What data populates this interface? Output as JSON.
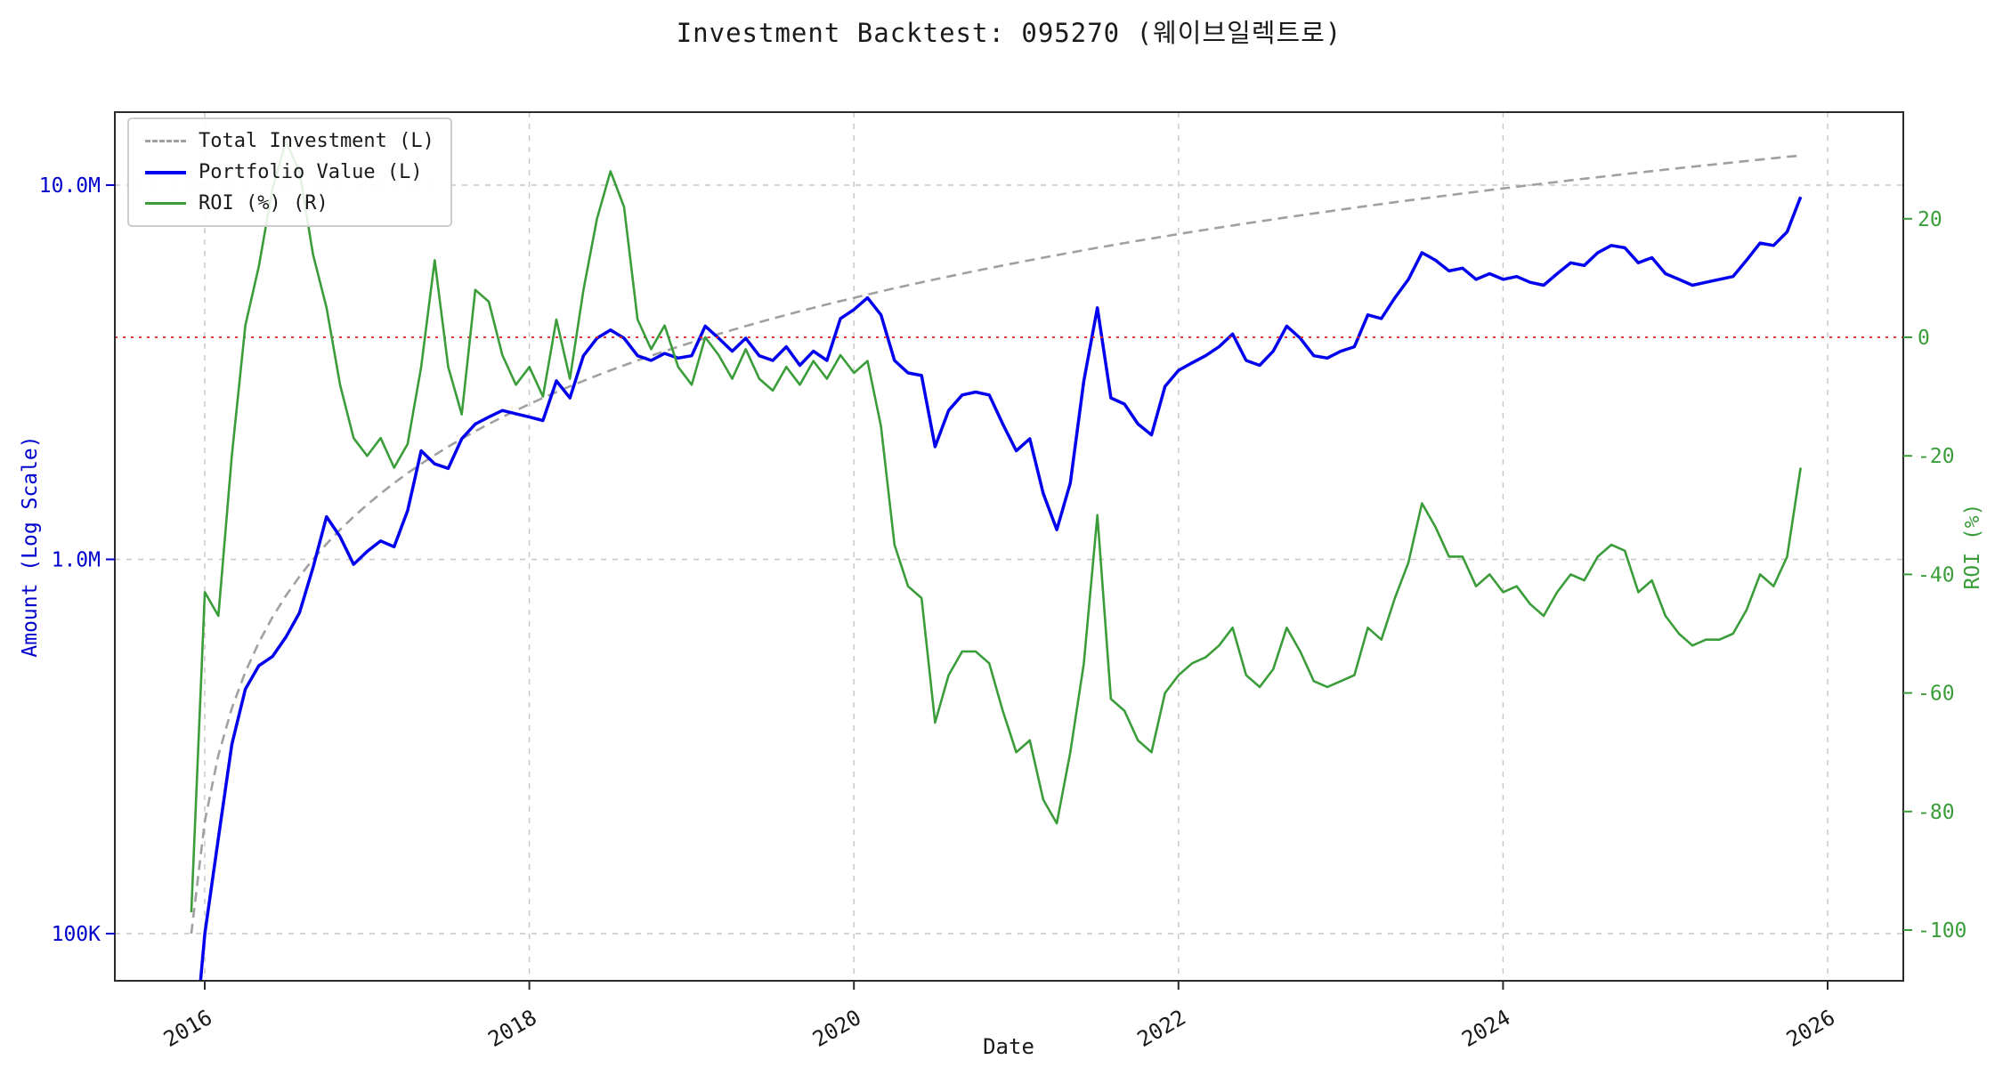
{
  "title": "Investment Backtest: 095270 (웨이브일렉트로)",
  "background_color": "#ffffff",
  "chart_data": {
    "type": "line",
    "title": "Investment Backtest: 095270 (웨이브일렉트로)",
    "grid": true,
    "legend_position": "upper left",
    "x_axis": {
      "label": "Date",
      "start_decimal_year": 2015.917,
      "step_years": 0.0833333,
      "points": 120,
      "ticks": [
        2016,
        2018,
        2020,
        2022,
        2024,
        2026
      ],
      "tick_color": "#1a1a1a"
    },
    "y_left": {
      "label": "Amount (Log Scale)",
      "scale": "log",
      "color": "#0000cc",
      "range_m": [
        0.075,
        15.6
      ],
      "ticks": [
        {
          "label": "10.0M",
          "value_m": 10
        },
        {
          "label": "1.0M",
          "value_m": 1
        },
        {
          "label": "100K",
          "value_m": 0.1
        }
      ]
    },
    "y_right": {
      "label": "ROI (%)",
      "scale": "linear",
      "color": "#3a9d3a",
      "range_pct": [
        -108,
        38
      ],
      "ticks": [
        {
          "label": "20",
          "value": 20
        },
        {
          "label": "0",
          "value": 0
        },
        {
          "label": "-20",
          "value": -20
        },
        {
          "label": "-40",
          "value": -40
        },
        {
          "label": "-60",
          "value": -60
        },
        {
          "label": "-80",
          "value": -80
        },
        {
          "label": "-100",
          "value": -100
        }
      ]
    },
    "reference_line": {
      "axis": "right",
      "value": 0,
      "color": "#e02020",
      "style": "dotted"
    },
    "series": [
      {
        "name": "Total Investment (L)",
        "axis": "left",
        "style": "dashed",
        "color": "#a0a0a0",
        "generator": {
          "type": "linear_monthly_contribution",
          "start_m": 0.1,
          "step_m": 0.1
        }
      },
      {
        "name": "Portfolio Value (L)",
        "axis": "left",
        "style": "solid",
        "color": "#0000ee",
        "values_m": [
          0.04,
          0.1,
          0.18,
          0.32,
          0.45,
          0.52,
          0.55,
          0.62,
          0.72,
          0.95,
          1.3,
          1.15,
          0.97,
          1.05,
          1.12,
          1.08,
          1.35,
          1.95,
          1.8,
          1.75,
          2.1,
          2.3,
          2.4,
          2.5,
          2.45,
          2.4,
          2.35,
          3.0,
          2.7,
          3.5,
          3.9,
          4.1,
          3.9,
          3.5,
          3.4,
          3.55,
          3.45,
          3.5,
          4.2,
          3.9,
          3.6,
          3.9,
          3.5,
          3.4,
          3.7,
          3.3,
          3.6,
          3.4,
          4.4,
          4.65,
          5.0,
          4.5,
          3.4,
          3.15,
          3.1,
          2.0,
          2.5,
          2.75,
          2.8,
          2.75,
          2.3,
          1.95,
          2.1,
          1.5,
          1.2,
          1.6,
          3.0,
          4.7,
          2.7,
          2.6,
          2.3,
          2.15,
          2.9,
          3.2,
          3.35,
          3.5,
          3.7,
          4.0,
          3.4,
          3.3,
          3.6,
          4.2,
          3.9,
          3.5,
          3.45,
          3.6,
          3.7,
          4.5,
          4.4,
          5.0,
          5.6,
          6.6,
          6.3,
          5.9,
          6.0,
          5.6,
          5.8,
          5.6,
          5.7,
          5.5,
          5.4,
          5.8,
          6.2,
          6.1,
          6.6,
          6.9,
          6.8,
          6.2,
          6.4,
          5.8,
          5.6,
          5.4,
          5.5,
          5.6,
          5.7,
          6.3,
          7.0,
          6.9,
          7.5,
          9.3
        ]
      },
      {
        "name": "ROI (%) (R)",
        "axis": "right",
        "style": "solid",
        "color": "#3a9d3a",
        "values_pct": [
          -97,
          -43,
          -47,
          -20,
          2,
          12,
          25,
          33,
          28,
          14,
          5,
          -8,
          -17,
          -20,
          -17,
          -22,
          -18,
          -5,
          13,
          -5,
          -13,
          8,
          6,
          -3,
          -8,
          -5,
          -10,
          3,
          -7,
          8,
          20,
          28,
          22,
          3,
          -2,
          2,
          -5,
          -8,
          0,
          -3,
          -7,
          -2,
          -7,
          -9,
          -5,
          -8,
          -4,
          -7,
          -3,
          -6,
          -4,
          -15,
          -35,
          -42,
          -44,
          -65,
          -57,
          -53,
          -53,
          -55,
          -63,
          -70,
          -68,
          -78,
          -82,
          -70,
          -55,
          -30,
          -61,
          -63,
          -68,
          -70,
          -60,
          -57,
          -55,
          -54,
          -52,
          -49,
          -57,
          -59,
          -56,
          -49,
          -53,
          -58,
          -59,
          -58,
          -57,
          -49,
          -51,
          -44,
          -38,
          -28,
          -32,
          -37,
          -37,
          -42,
          -40,
          -43,
          -42,
          -45,
          -47,
          -43,
          -40,
          -41,
          -37,
          -35,
          -36,
          -43,
          -41,
          -47,
          -50,
          -52,
          -51,
          -51,
          -50,
          -46,
          -40,
          -42,
          -37,
          -22
        ]
      }
    ]
  }
}
